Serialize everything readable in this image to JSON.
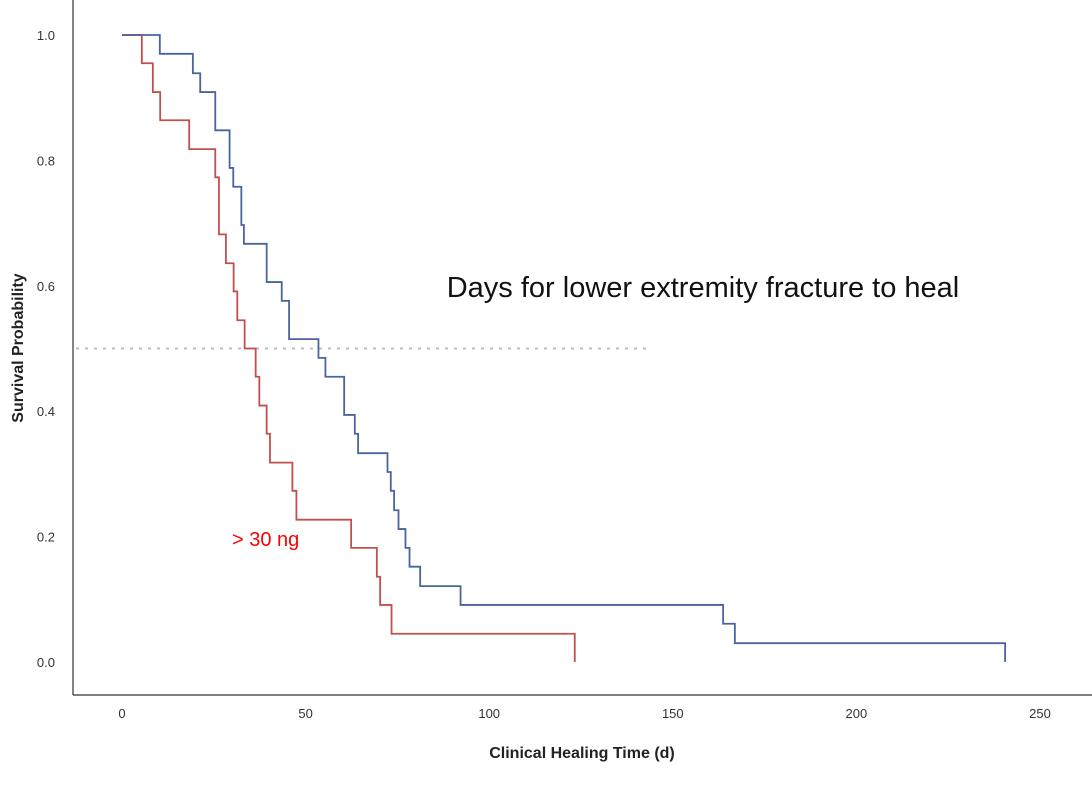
{
  "chart_data": {
    "type": "line",
    "subtype": "kaplan-meier step",
    "title": "",
    "annotation_title": "Days for lower extremity fracture to heal",
    "xlabel": "Clinical Healing Time (d)",
    "ylabel": "Survival Probability",
    "xlim": [
      -13,
      263
    ],
    "ylim": [
      -0.05,
      1.05
    ],
    "xticks": [
      "0",
      "50",
      "100",
      "150",
      "200",
      "250"
    ],
    "yticks": [
      "0.0",
      "0.2",
      "0.4",
      "0.6",
      "0.8",
      "1.0"
    ],
    "grid": false,
    "reference_line": {
      "y": 0.5,
      "x_end": 144,
      "style": "dotted",
      "color": "#bbbbbb"
    },
    "series": [
      {
        "name": "> 30 ng",
        "color": "#c0504d",
        "label_color": "#ff0000",
        "start": 0,
        "steps": [
          [
            5.4,
            0.955
          ],
          [
            8.4,
            0.909
          ],
          [
            10.4,
            0.864
          ],
          [
            18.3,
            0.818
          ],
          [
            25.4,
            0.773
          ],
          [
            26.4,
            0.682
          ],
          [
            28.3,
            0.636
          ],
          [
            30.4,
            0.591
          ],
          [
            31.4,
            0.545
          ],
          [
            33.4,
            0.5
          ],
          [
            36.4,
            0.455
          ],
          [
            37.4,
            0.409
          ],
          [
            39.4,
            0.364
          ],
          [
            40.3,
            0.318
          ],
          [
            46.4,
            0.273
          ],
          [
            47.5,
            0.227
          ],
          [
            62.4,
            0.182
          ],
          [
            69.4,
            0.136
          ],
          [
            70.3,
            0.091
          ],
          [
            73.4,
            0.045
          ],
          [
            123.3,
            0.0
          ]
        ]
      },
      {
        "name": "",
        "color": "#4a64a0",
        "start": 0,
        "steps": [
          [
            10.3,
            0.97
          ],
          [
            19.3,
            0.939
          ],
          [
            21.3,
            0.909
          ],
          [
            25.4,
            0.848
          ],
          [
            29.3,
            0.788
          ],
          [
            30.3,
            0.758
          ],
          [
            32.5,
            0.697
          ],
          [
            33.2,
            0.667
          ],
          [
            39.4,
            0.606
          ],
          [
            43.5,
            0.576
          ],
          [
            45.5,
            0.515
          ],
          [
            53.5,
            0.485
          ],
          [
            55.4,
            0.455
          ],
          [
            60.5,
            0.394
          ],
          [
            63.4,
            0.364
          ],
          [
            64.3,
            0.333
          ],
          [
            72.3,
            0.303
          ],
          [
            73.2,
            0.273
          ],
          [
            74.1,
            0.242
          ],
          [
            75.3,
            0.212
          ],
          [
            77.2,
            0.182
          ],
          [
            78.3,
            0.152
          ],
          [
            81.2,
            0.121
          ],
          [
            92.2,
            0.091
          ],
          [
            163.7,
            0.061
          ],
          [
            166.9,
            0.03
          ],
          [
            240.5,
            0.0
          ]
        ]
      }
    ]
  }
}
